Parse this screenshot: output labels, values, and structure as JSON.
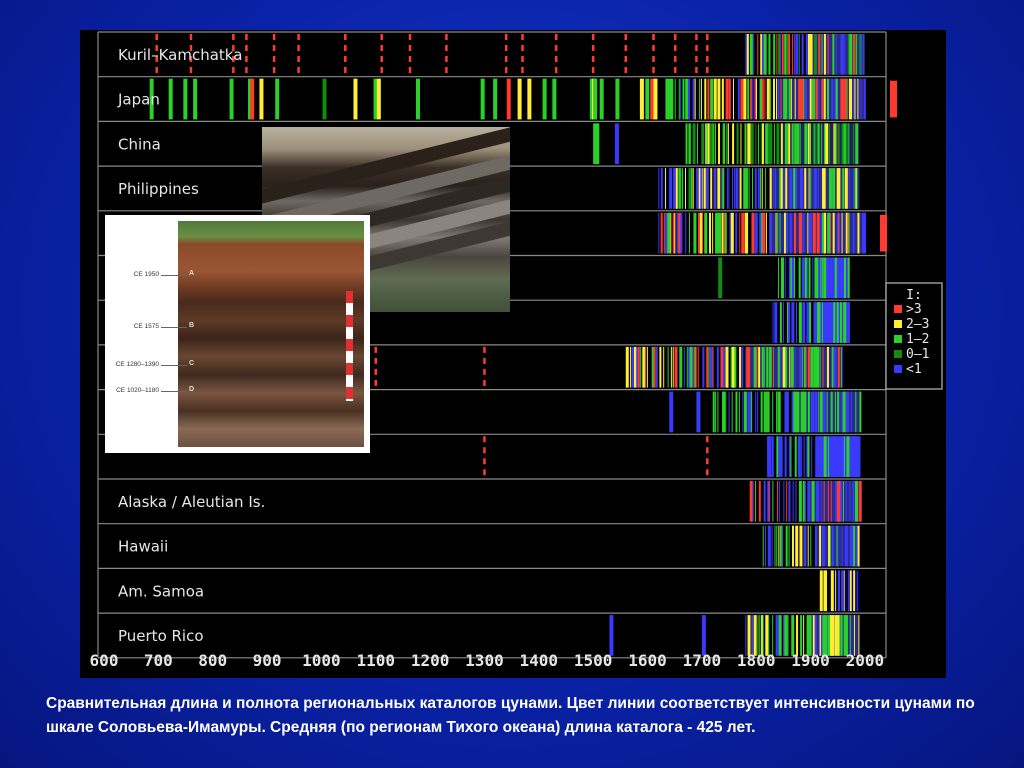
{
  "chart_data": {
    "type": "heatmap",
    "title": "",
    "x_ticks": [
      600,
      700,
      800,
      900,
      1000,
      1100,
      1200,
      1300,
      1400,
      1500,
      1600,
      1700,
      1800,
      1900,
      2000
    ],
    "xlim": [
      600,
      2030
    ],
    "legend": {
      "title": "I:",
      "placement": "right",
      "entries": [
        {
          "label": ">3",
          "color": "#ff3b30"
        },
        {
          "label": "2–3",
          "color": "#ffee33"
        },
        {
          "label": "1–2",
          "color": "#2bd02b"
        },
        {
          "label": "0–1",
          "color": "#138a13"
        },
        {
          "label": "<1",
          "color": "#3a3aff"
        }
      ]
    },
    "regions": [
      {
        "label": "Kuril–Kamchatka"
      },
      {
        "label": "Japan"
      },
      {
        "label": "China"
      },
      {
        "label": "Philippines"
      },
      {
        "label": ""
      },
      {
        "label": ""
      },
      {
        "label": ""
      },
      {
        "label": ""
      },
      {
        "label": ""
      },
      {
        "label": ""
      },
      {
        "label": "Alaska / Aleutian Is."
      },
      {
        "label": "Hawaii"
      },
      {
        "label": "Am. Samoa"
      },
      {
        "label": "Puerto Rico"
      }
    ]
  },
  "photo_labels": [
    {
      "text": "CE 1950",
      "letter": "A"
    },
    {
      "text": "CE 1575",
      "letter": "B"
    },
    {
      "text": "CE 1280–1390",
      "letter": "C"
    },
    {
      "text": "CE 1020–1180",
      "letter": "D"
    }
  ],
  "caption": "Сравнительная длина и полнота региональных каталогов цунами. Цвет линии соответствует интенсивности цунами по шкале Соловьева-Имамуры.  Средняя (по регионам Тихого океана) длина каталога -  425 лет."
}
